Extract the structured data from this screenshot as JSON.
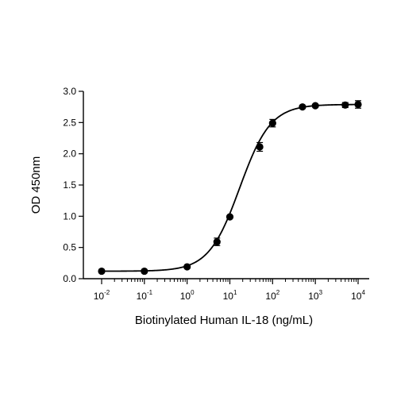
{
  "chart_data": {
    "type": "scatter",
    "title": "",
    "xlabel": "Biotinylated Human IL-18 (ng/mL)",
    "ylabel": "OD 450nm",
    "x_scale": "log",
    "xlim": [
      0.01,
      10000
    ],
    "ylim": [
      0,
      3.0
    ],
    "grid": false,
    "x_ticks": [
      {
        "base": "10",
        "exp": "-2",
        "value": 0.01
      },
      {
        "base": "10",
        "exp": "-1",
        "value": 0.1
      },
      {
        "base": "10",
        "exp": "0",
        "value": 1
      },
      {
        "base": "10",
        "exp": "1",
        "value": 10
      },
      {
        "base": "10",
        "exp": "2",
        "value": 100
      },
      {
        "base": "10",
        "exp": "3",
        "value": 1000
      },
      {
        "base": "10",
        "exp": "4",
        "value": 10000
      }
    ],
    "y_ticks": [
      "0.0",
      "0.5",
      "1.0",
      "1.5",
      "2.0",
      "2.5",
      "3.0"
    ],
    "series": [
      {
        "x": [
          0.01,
          0.1,
          1,
          5,
          10,
          50,
          100,
          500,
          1000,
          5000,
          10000
        ],
        "y": [
          0.12,
          0.12,
          0.19,
          0.59,
          0.99,
          2.11,
          2.49,
          2.75,
          2.77,
          2.78,
          2.79
        ],
        "error": [
          0.01,
          0.01,
          0.02,
          0.06,
          0.02,
          0.07,
          0.06,
          0.02,
          0.02,
          0.04,
          0.06
        ],
        "fit": {
          "type": "4PL",
          "bottom": 0.12,
          "top": 2.79,
          "ec50": 17,
          "hill": 1.2
        }
      }
    ],
    "colors": {
      "marker": "#000000",
      "line": "#000000"
    }
  }
}
